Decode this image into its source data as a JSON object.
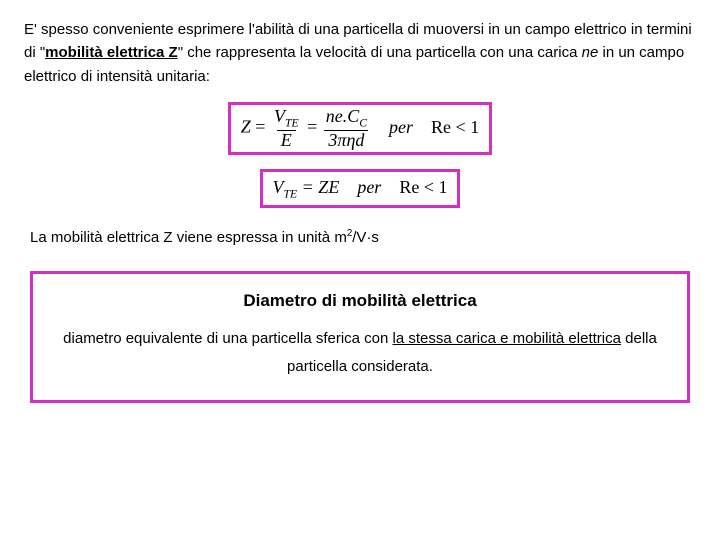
{
  "intro": {
    "seg1": "E' spesso conveniente esprimere l'abilità di una particella di muoversi in un campo elettrico in termini di \"",
    "term": "mobilità elettrica Z",
    "seg2": "\" che rappresenta la velocità di una particella con una carica ",
    "ne": "ne",
    "seg3": " in un campo elettrico di intensità unitaria:"
  },
  "eq1": {
    "lhs_Z": "Z",
    "eq": " = ",
    "frac1_num": "V",
    "frac1_num_sub": "TE",
    "frac1_den": "E",
    "frac2_num_a": "ne.C",
    "frac2_num_sub": "C",
    "frac2_den": "3πηd",
    "per": "per",
    "cond": "Re < 1"
  },
  "eq2": {
    "lhs": "V",
    "lhs_sub": "TE",
    "rhs": " = ZE",
    "per": "per",
    "cond": "Re < 1"
  },
  "units": {
    "seg1": "La mobilità elettrica Z viene espressa in unità m",
    "sup": "2",
    "seg2": "/V·s"
  },
  "callout": {
    "title": "Diametro di mobilità elettrica",
    "body_a": "diametro equivalente di una particella sferica con ",
    "body_u1": "la stessa carica e mobilità elettrica",
    "body_b": " della particella considerata."
  },
  "colors": {
    "box_border": "#d42fc2",
    "text": "#000000",
    "bg": "#ffffff"
  }
}
